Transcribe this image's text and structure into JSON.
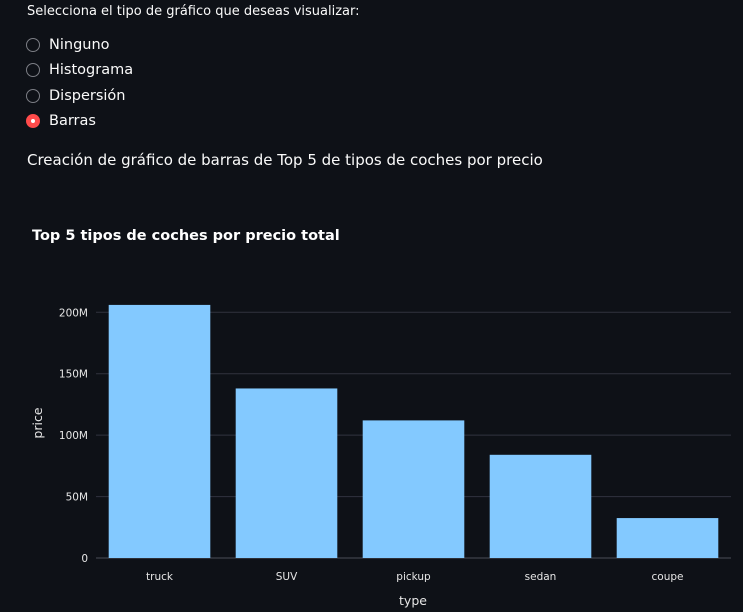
{
  "prompt": "Selecciona el tipo de gráfico que deseas visualizar:",
  "radio": {
    "options": [
      "Ninguno",
      "Histograma",
      "Dispersión",
      "Barras"
    ],
    "selected": "Barras"
  },
  "description": "Creación de gráfico de barras de Top 5 de tipos de coches por precio",
  "colors": {
    "background": "#0e1117",
    "accent": "#ff4b4b",
    "bar": "#83c9ff",
    "grid": "#31333f"
  },
  "chart_data": {
    "type": "bar",
    "title": "Top 5 tipos de coches por precio total",
    "xlabel": "type",
    "ylabel": "price",
    "categories": [
      "truck",
      "SUV",
      "pickup",
      "sedan",
      "coupe"
    ],
    "values": [
      206000000,
      138000000,
      112000000,
      84000000,
      32500000
    ],
    "ylim": [
      0,
      210000000
    ],
    "yticks": [
      0,
      50000000,
      100000000,
      150000000,
      200000000
    ],
    "ytick_labels": [
      "0",
      "50M",
      "100M",
      "150M",
      "200M"
    ],
    "grid": "horizontal",
    "legend": "none"
  }
}
